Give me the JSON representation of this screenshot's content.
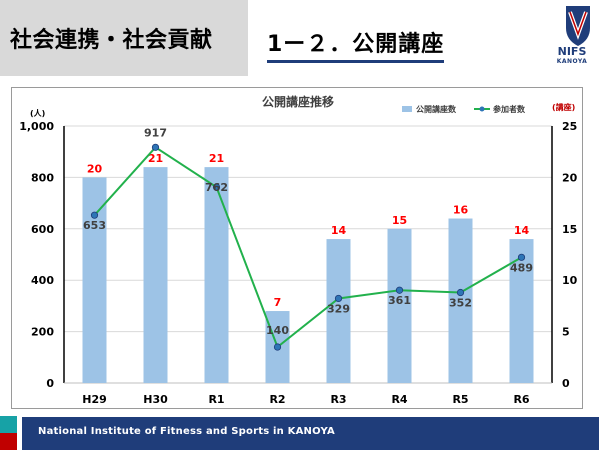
{
  "header": {
    "section_title": "社会連携・社会貢献",
    "slide_title": "1ー２．公開講座"
  },
  "logo": {
    "text": "NIFS",
    "sub": "KANOYA"
  },
  "footer": {
    "text": "National Institute of Fitness and Sports in KANOYA"
  },
  "colors": {
    "bar": "#9dc3e6",
    "line": "#22b14c",
    "marker": "#2e75b6",
    "bar_label": "#ff0000",
    "footer": "#1f3d7a",
    "accent_red": "#c00000",
    "accent_teal": "#17a2a6"
  },
  "chart_data": {
    "type": "bar",
    "title": "公開講座推移",
    "categories": [
      "H29",
      "H30",
      "R1",
      "R2",
      "R3",
      "R4",
      "R5",
      "R6"
    ],
    "series": [
      {
        "name": "公開講座数",
        "type": "bar",
        "axis": "right",
        "values": [
          20,
          21,
          21,
          7,
          14,
          15,
          16,
          14
        ]
      },
      {
        "name": "参加者数",
        "type": "line",
        "axis": "left",
        "values": [
          653,
          917,
          762,
          140,
          329,
          361,
          352,
          489
        ]
      }
    ],
    "ylabel_left": "(人)",
    "ylabel_right": "(講座)",
    "ylim_left": [
      0,
      1000
    ],
    "ylim_right": [
      0,
      25
    ],
    "yticks_left": [
      "0",
      "200",
      "400",
      "600",
      "800",
      "1,000"
    ],
    "yticks_right": [
      "0",
      "5",
      "10",
      "15",
      "20",
      "25"
    ],
    "grid": true,
    "legend": "top-right"
  }
}
